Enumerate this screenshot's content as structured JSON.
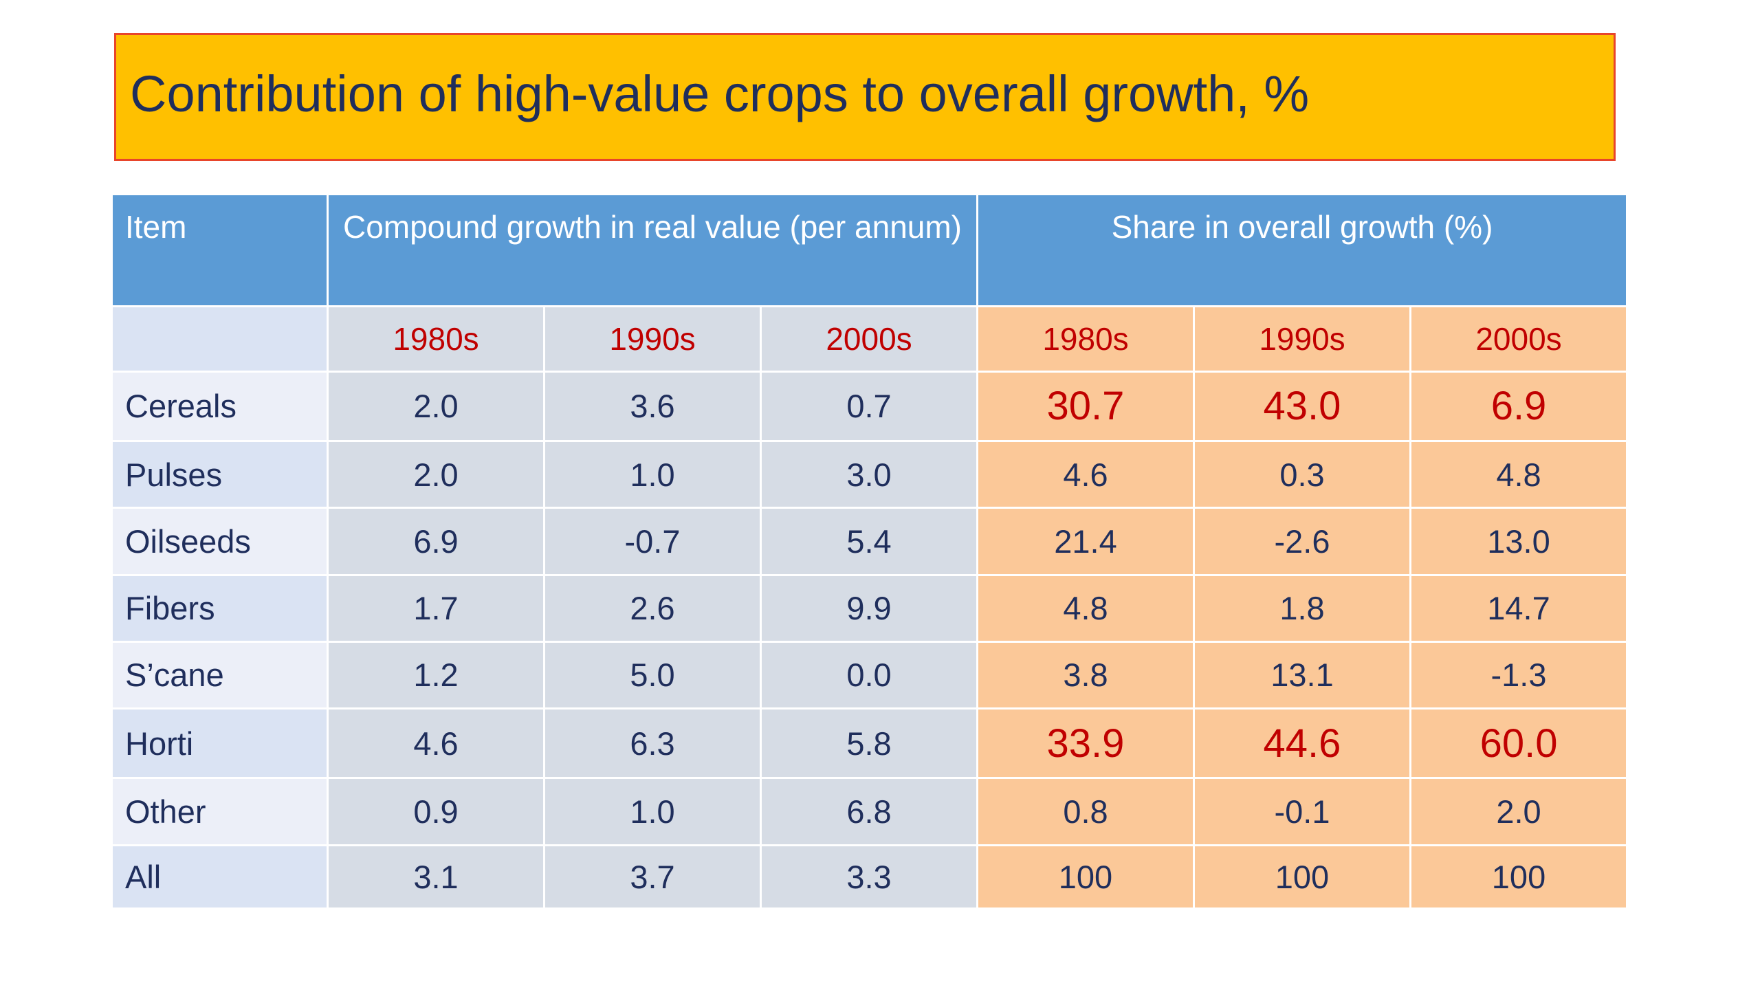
{
  "title": "Contribution of high-value crops to overall growth, %",
  "colors": {
    "title_bg": "#FFC000",
    "title_border": "#E8452B",
    "title_text": "#1F2E5C",
    "header_bg": "#5B9BD5",
    "left_panel_bg": "#D6DCE5",
    "right_panel_bg": "#FBC898",
    "highlight_text": "#C00000"
  },
  "table": {
    "header": {
      "item": "Item",
      "group_growth": "Compound growth in real value (per annum)",
      "group_share": "Share in overall growth (%)"
    },
    "decades": [
      "1980s",
      "1990s",
      "2000s",
      "1980s",
      "1990s",
      "2000s"
    ],
    "rows": [
      {
        "item": "Cereals",
        "values": [
          "2.0",
          "3.6",
          "0.7",
          "30.7",
          "43.0",
          "6.9"
        ],
        "highlight_share": true
      },
      {
        "item": "Pulses",
        "values": [
          "2.0",
          "1.0",
          "3.0",
          "4.6",
          "0.3",
          "4.8"
        ],
        "highlight_share": false
      },
      {
        "item": "Oilseeds",
        "values": [
          "6.9",
          "-0.7",
          "5.4",
          "21.4",
          "-2.6",
          "13.0"
        ],
        "highlight_share": false
      },
      {
        "item": "Fibers",
        "values": [
          "1.7",
          "2.6",
          "9.9",
          "4.8",
          "1.8",
          "14.7"
        ],
        "highlight_share": false
      },
      {
        "item": "S’cane",
        "values": [
          "1.2",
          "5.0",
          "0.0",
          "3.8",
          "13.1",
          "-1.3"
        ],
        "highlight_share": false
      },
      {
        "item": "Horti",
        "values": [
          "4.6",
          "6.3",
          "5.8",
          "33.9",
          "44.6",
          "60.0"
        ],
        "highlight_share": true
      },
      {
        "item": "Other",
        "values": [
          "0.9",
          "1.0",
          "6.8",
          "0.8",
          "-0.1",
          "2.0"
        ],
        "highlight_share": false
      },
      {
        "item": "All",
        "values": [
          "3.1",
          "3.7",
          "3.3",
          "100",
          "100",
          "100"
        ],
        "highlight_share": false
      }
    ]
  }
}
